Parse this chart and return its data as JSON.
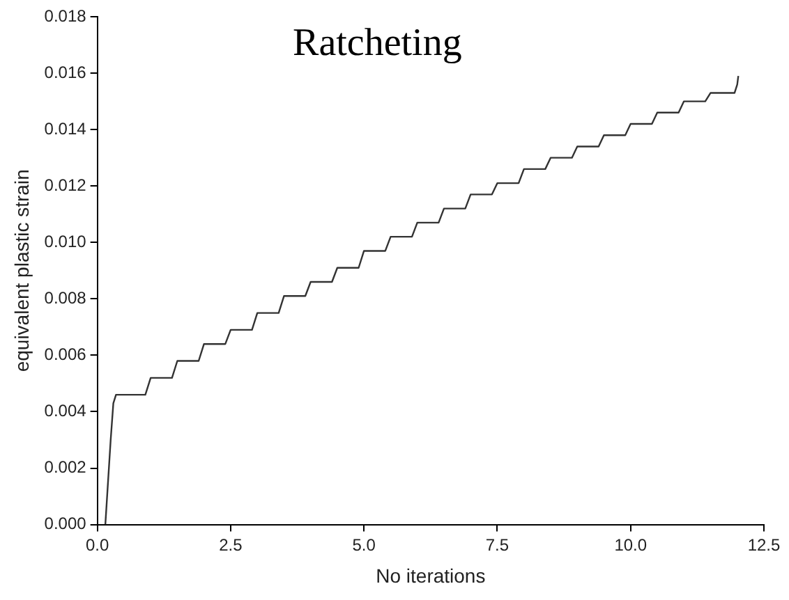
{
  "chart_data": {
    "type": "line",
    "title": "Ratcheting",
    "xlabel": "No iterations",
    "ylabel": "equivalent plastic strain",
    "x": [
      0.15,
      0.25,
      0.3,
      0.35,
      0.9,
      1.0,
      1.4,
      1.5,
      1.9,
      2.0,
      2.4,
      2.5,
      2.9,
      3.0,
      3.4,
      3.5,
      3.9,
      4.0,
      4.4,
      4.5,
      4.9,
      5.0,
      5.4,
      5.5,
      5.9,
      6.0,
      6.4,
      6.5,
      6.9,
      7.0,
      7.4,
      7.5,
      7.9,
      8.0,
      8.4,
      8.5,
      8.9,
      9.0,
      9.4,
      9.5,
      9.9,
      10.0,
      10.4,
      10.5,
      10.9,
      11.0,
      11.4,
      11.5,
      11.95,
      12.0,
      12.02
    ],
    "series": [
      {
        "color": "#333333",
        "values": [
          0,
          0.003,
          0.0043,
          0.0046,
          0.0046,
          0.0052,
          0.0052,
          0.0058,
          0.0058,
          0.0064,
          0.0064,
          0.0069,
          0.0069,
          0.0075,
          0.0075,
          0.0081,
          0.0081,
          0.0086,
          0.0086,
          0.0091,
          0.0091,
          0.0097,
          0.0097,
          0.0102,
          0.0102,
          0.0107,
          0.0107,
          0.0112,
          0.0112,
          0.0117,
          0.0117,
          0.0121,
          0.0121,
          0.0126,
          0.0126,
          0.013,
          0.013,
          0.0134,
          0.0134,
          0.0138,
          0.0138,
          0.0142,
          0.0142,
          0.0146,
          0.0146,
          0.015,
          0.015,
          0.0153,
          0.0153,
          0.0156,
          0.0159
        ]
      }
    ],
    "xlim": [
      0,
      12.5
    ],
    "xticks": [
      {
        "value": 0,
        "label": "0.0"
      },
      2.5,
      {
        "value": 5,
        "label": "5.0"
      },
      7.5,
      {
        "value": 10,
        "label": "10.0"
      },
      12.5
    ],
    "ylim": [
      0,
      0.018
    ],
    "yticks": [
      {
        "value": 0,
        "label": "0.000"
      },
      0.002,
      0.004,
      0.006,
      0.008,
      {
        "value": 0.01,
        "label": "0.010"
      },
      0.012,
      0.014,
      0.016,
      0.018
    ],
    "grid": false,
    "legend": false,
    "marker": "none",
    "line_style": "solid"
  }
}
